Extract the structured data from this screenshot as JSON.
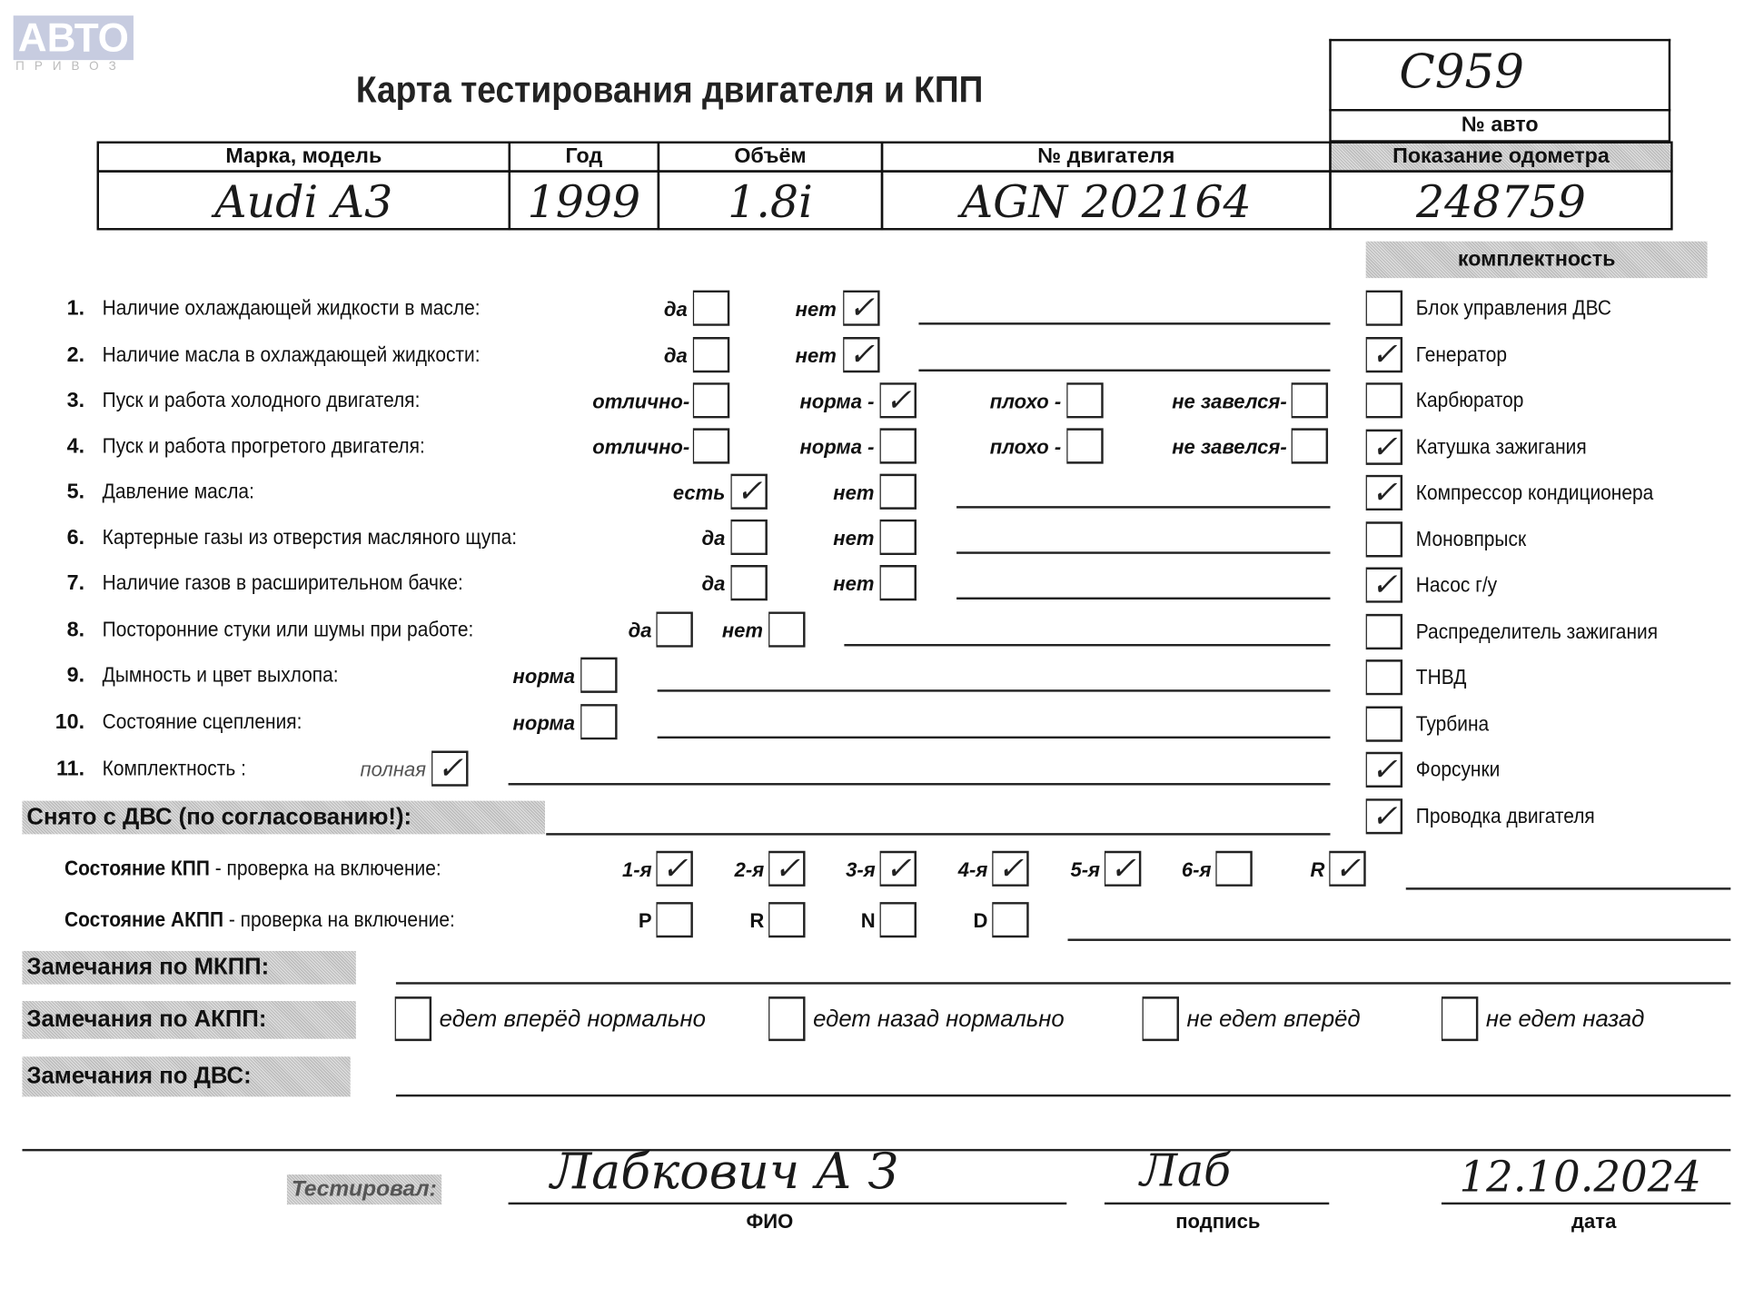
{
  "logo": {
    "text": "АВТО",
    "subtext": "ПРИВОЗ"
  },
  "title": "Карта тестирования двигателя  и КПП",
  "car_number": {
    "value": "C959",
    "label": "№ авто"
  },
  "table": {
    "headers": [
      "Марка, модель",
      "Год",
      "Объём",
      "№ двигателя",
      "Показание одометра"
    ],
    "values": [
      "Audi  A3",
      "1999",
      "1.8i",
      "AGN 202164",
      "248759"
    ]
  },
  "checks": [
    {
      "num": "1.",
      "label": "Наличие охлаждающей жидкости в масле:",
      "options": [
        {
          "label": "да",
          "checked": false
        },
        {
          "label": "нет",
          "checked": true
        }
      ]
    },
    {
      "num": "2.",
      "label": "Наличие масла в охлаждающей жидкости:",
      "options": [
        {
          "label": "да",
          "checked": false
        },
        {
          "label": "нет",
          "checked": true
        }
      ]
    },
    {
      "num": "3.",
      "label": "Пуск и работа холодного двигателя:",
      "options": [
        {
          "label": "отлично-",
          "checked": false
        },
        {
          "label": "норма -",
          "checked": true
        },
        {
          "label": "плохо -",
          "checked": false
        },
        {
          "label": "не завелся-",
          "checked": false
        }
      ]
    },
    {
      "num": "4.",
      "label": "Пуск и работа прогретого двигателя:",
      "options": [
        {
          "label": "отлично-",
          "checked": false
        },
        {
          "label": "норма -",
          "checked": false
        },
        {
          "label": "плохо -",
          "checked": false
        },
        {
          "label": "не завелся-",
          "checked": false
        }
      ]
    },
    {
      "num": "5.",
      "label": "Давление масла:",
      "options": [
        {
          "label": "есть",
          "checked": true
        },
        {
          "label": "нет",
          "checked": false
        }
      ]
    },
    {
      "num": "6.",
      "label": "Картерные газы из отверстия масляного щупа:",
      "options": [
        {
          "label": "да",
          "checked": false
        },
        {
          "label": "нет",
          "checked": false
        }
      ]
    },
    {
      "num": "7.",
      "label": "Наличие газов в расширительном бачке:",
      "options": [
        {
          "label": "да",
          "checked": false
        },
        {
          "label": "нет",
          "checked": false
        }
      ]
    },
    {
      "num": "8.",
      "label": "Посторонние стуки или шумы при работе:",
      "options": [
        {
          "label": "да",
          "checked": false
        },
        {
          "label": "нет",
          "checked": false
        }
      ]
    },
    {
      "num": "9.",
      "label": "Дымность и цвет выхлопа:",
      "options": [
        {
          "label": "норма",
          "checked": false
        }
      ]
    },
    {
      "num": "10.",
      "label": "Состояние сцепления:",
      "options": [
        {
          "label": "норма",
          "checked": false
        }
      ]
    },
    {
      "num": "11.",
      "label": "Комплектность :",
      "options": [
        {
          "label": "полная",
          "checked": true
        }
      ]
    }
  ],
  "completeness": {
    "header": "комплектность",
    "items": [
      {
        "label": "Блок управления ДВС",
        "checked": false
      },
      {
        "label": "Генератор",
        "checked": true
      },
      {
        "label": "Карбюратор",
        "checked": false
      },
      {
        "label": "Катушка зажигания",
        "checked": true
      },
      {
        "label": "Компрессор кондиционера",
        "checked": true
      },
      {
        "label": "Моновпрыск",
        "checked": false
      },
      {
        "label": "Насос г/у",
        "checked": true
      },
      {
        "label": "Распределитель зажигания",
        "checked": false
      },
      {
        "label": "ТНВД",
        "checked": false
      },
      {
        "label": "Турбина",
        "checked": false
      },
      {
        "label": "Форсунки",
        "checked": true
      },
      {
        "label": "Проводка двигателя",
        "checked": true
      }
    ]
  },
  "removed": {
    "label": "Снято с ДВС (по согласованию!):"
  },
  "manual_gearbox": {
    "label_bold": "Состояние КПП",
    "label_rest": " - проверка на включение:",
    "gears": [
      {
        "label": "1-я",
        "checked": true
      },
      {
        "label": "2-я",
        "checked": true
      },
      {
        "label": "3-я",
        "checked": true
      },
      {
        "label": "4-я",
        "checked": true
      },
      {
        "label": "5-я",
        "checked": true
      },
      {
        "label": "6-я",
        "checked": false
      },
      {
        "label": "R",
        "checked": true
      }
    ]
  },
  "auto_gearbox": {
    "label_bold": "Состояние АКПП",
    "label_rest": " - проверка на включение:",
    "gears": [
      {
        "label": "P",
        "checked": false
      },
      {
        "label": "R",
        "checked": false
      },
      {
        "label": "N",
        "checked": false
      },
      {
        "label": "D",
        "checked": false
      }
    ]
  },
  "remarks": {
    "manual": "Замечания по МКПП:",
    "auto": "Замечания по АКПП:",
    "auto_options": [
      {
        "label": "едет вперёд нормально",
        "checked": false
      },
      {
        "label": "едет назад нормально",
        "checked": false
      },
      {
        "label": "не едет вперёд",
        "checked": false
      },
      {
        "label": "не едет назад",
        "checked": false
      }
    ],
    "engine": "Замечания по ДВС:"
  },
  "signoff": {
    "tested_by_label": "Тестировал:",
    "name": "Лабкович А З",
    "name_caption": "ФИО",
    "signature": "Лаб",
    "signature_caption": "подпись",
    "date": "12.10.2024",
    "date_caption": "дата"
  }
}
